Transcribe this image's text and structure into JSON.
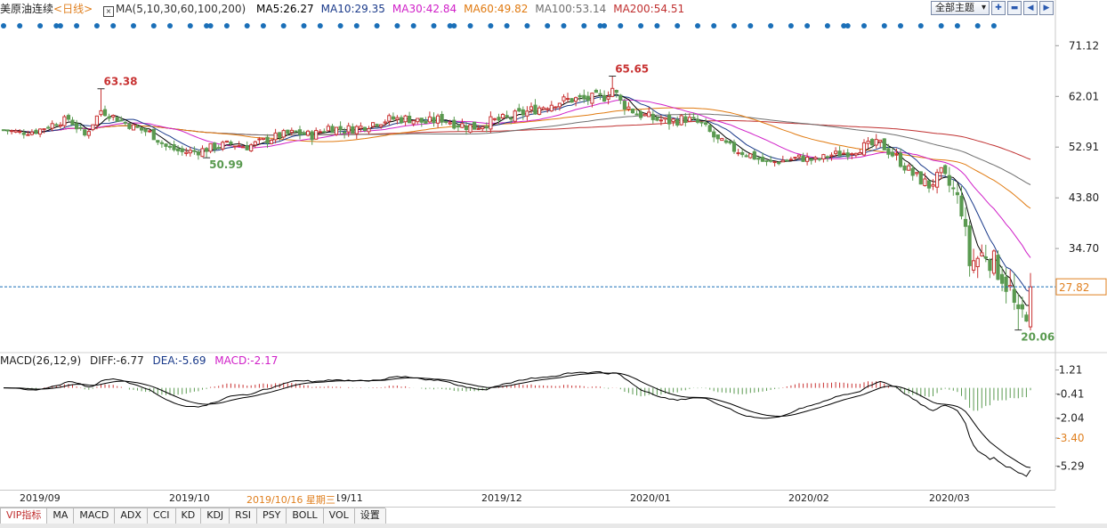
{
  "header": {
    "title": "美原油连续",
    "period": "<日线>",
    "ma_params": "MA(5,10,30,60,100,200)",
    "ma_values": [
      {
        "label": "MA5:26.27",
        "color": "#000000"
      },
      {
        "label": "MA10:29.35",
        "color": "#1a3a8a"
      },
      {
        "label": "MA30:42.84",
        "color": "#d020c8"
      },
      {
        "label": "MA60:49.82",
        "color": "#e07a10"
      },
      {
        "label": "MA100:53.14",
        "color": "#707070"
      },
      {
        "label": "MA200:54.51",
        "color": "#c03030"
      }
    ],
    "topic_select": "全部主题",
    "toolbar_icons": [
      "plus-icon",
      "minus-icon",
      "prev-icon",
      "next-icon"
    ]
  },
  "macd_header": {
    "title": "MACD(26,12,9)",
    "diff": "DIFF:-6.77",
    "dea": "DEA:-5.69",
    "macd": "MACD:-2.17"
  },
  "x_axis": {
    "labels": [
      "2019/09",
      "2019/10",
      "2019/11",
      "2019/12",
      "2020/01",
      "2020/02",
      "2020/03"
    ],
    "cursor_date": "2019/10/16 星期三"
  },
  "tabs": [
    "VIP指标",
    "MA",
    "MACD",
    "ADX",
    "CCI",
    "KD",
    "KDJ",
    "RSI",
    "PSY",
    "BOLL",
    "VOL",
    "设置"
  ],
  "colors": {
    "up": "#c83232",
    "down": "#5a9a50",
    "ma5": "#000000",
    "ma10": "#1a3a8a",
    "ma30": "#d020c8",
    "ma60": "#e07a10",
    "ma100": "#707070",
    "ma200": "#c03030",
    "marker": "#1a6fb8",
    "current": "#e08020"
  },
  "chart_data": [
    {
      "type": "candlestick",
      "title": "美原油连续 日线",
      "y_ticks": [
        71.12,
        62.01,
        52.91,
        43.8,
        34.7
      ],
      "ylim": [
        16.48,
        75.81
      ],
      "current_price": 27.82,
      "annotations": [
        {
          "label": "63.38",
          "value": 63.38,
          "color": "#c83232"
        },
        {
          "label": "50.99",
          "value": 50.99,
          "color": "#5a9a50"
        },
        {
          "label": "65.65",
          "value": 65.65,
          "color": "#c83232"
        },
        {
          "label": "20.06",
          "value": 20.06,
          "color": "#5a9a50"
        }
      ],
      "anchors": {
        "close": [
          [
            0,
            56
          ],
          [
            4,
            55.5
          ],
          [
            8,
            55.8
          ],
          [
            12,
            57
          ],
          [
            16,
            58
          ],
          [
            20,
            55
          ],
          [
            24,
            59.5
          ],
          [
            28,
            58
          ],
          [
            32,
            56.5
          ],
          [
            36,
            55.5
          ],
          [
            40,
            53
          ],
          [
            44,
            52
          ],
          [
            48,
            52.2
          ],
          [
            52,
            53
          ],
          [
            56,
            53.5
          ],
          [
            60,
            53
          ],
          [
            64,
            54
          ],
          [
            68,
            55
          ],
          [
            72,
            55.5
          ],
          [
            76,
            55
          ],
          [
            80,
            56.5
          ],
          [
            84,
            56
          ],
          [
            88,
            56.5
          ],
          [
            92,
            57.5
          ],
          [
            96,
            58
          ],
          [
            100,
            58
          ],
          [
            104,
            57.3
          ],
          [
            108,
            58
          ],
          [
            112,
            57
          ],
          [
            116,
            56.5
          ],
          [
            120,
            57.5
          ],
          [
            124,
            58
          ],
          [
            128,
            59
          ],
          [
            132,
            60
          ],
          [
            136,
            61
          ],
          [
            140,
            61.5
          ],
          [
            144,
            61.5
          ],
          [
            148,
            62
          ],
          [
            150,
            63.5
          ],
          [
            152,
            61
          ],
          [
            156,
            59
          ],
          [
            160,
            58
          ],
          [
            164,
            57.5
          ],
          [
            168,
            58
          ],
          [
            172,
            57
          ],
          [
            176,
            54
          ],
          [
            180,
            52.5
          ],
          [
            184,
            51.5
          ],
          [
            188,
            50
          ],
          [
            192,
            50.5
          ],
          [
            196,
            51
          ],
          [
            200,
            50.5
          ],
          [
            204,
            51.5
          ],
          [
            208,
            52
          ],
          [
            212,
            53
          ],
          [
            216,
            53.5
          ],
          [
            220,
            51
          ],
          [
            224,
            48
          ],
          [
            228,
            46
          ],
          [
            231,
            48
          ],
          [
            234,
            45
          ],
          [
            236,
            42
          ],
          [
            238,
            32
          ],
          [
            240,
            33
          ],
          [
            242,
            34
          ],
          [
            244,
            32
          ],
          [
            246,
            30
          ],
          [
            248,
            27
          ],
          [
            250,
            21.5
          ],
          [
            252,
            24
          ],
          [
            253,
            27.82
          ]
        ],
        "volatility": [
          [
            0,
            0.8
          ],
          [
            150,
            1.3
          ],
          [
            200,
            0.9
          ],
          [
            230,
            1.4
          ],
          [
            236,
            2.5
          ],
          [
            253,
            3.5
          ]
        ]
      },
      "moving_averages": [
        "ma5",
        "ma10",
        "ma30",
        "ma60",
        "ma100",
        "ma200"
      ],
      "marker_count": 60
    },
    {
      "type": "macd",
      "title": "MACD(26,12,9)",
      "y_ticks": [
        1.21,
        -0.41,
        -2.04,
        -3.4,
        -5.29
      ],
      "current": -3.4,
      "ylim": [
        -6.77,
        1.96
      ],
      "diff": -6.77,
      "dea": -5.69,
      "macd": -2.17
    }
  ]
}
